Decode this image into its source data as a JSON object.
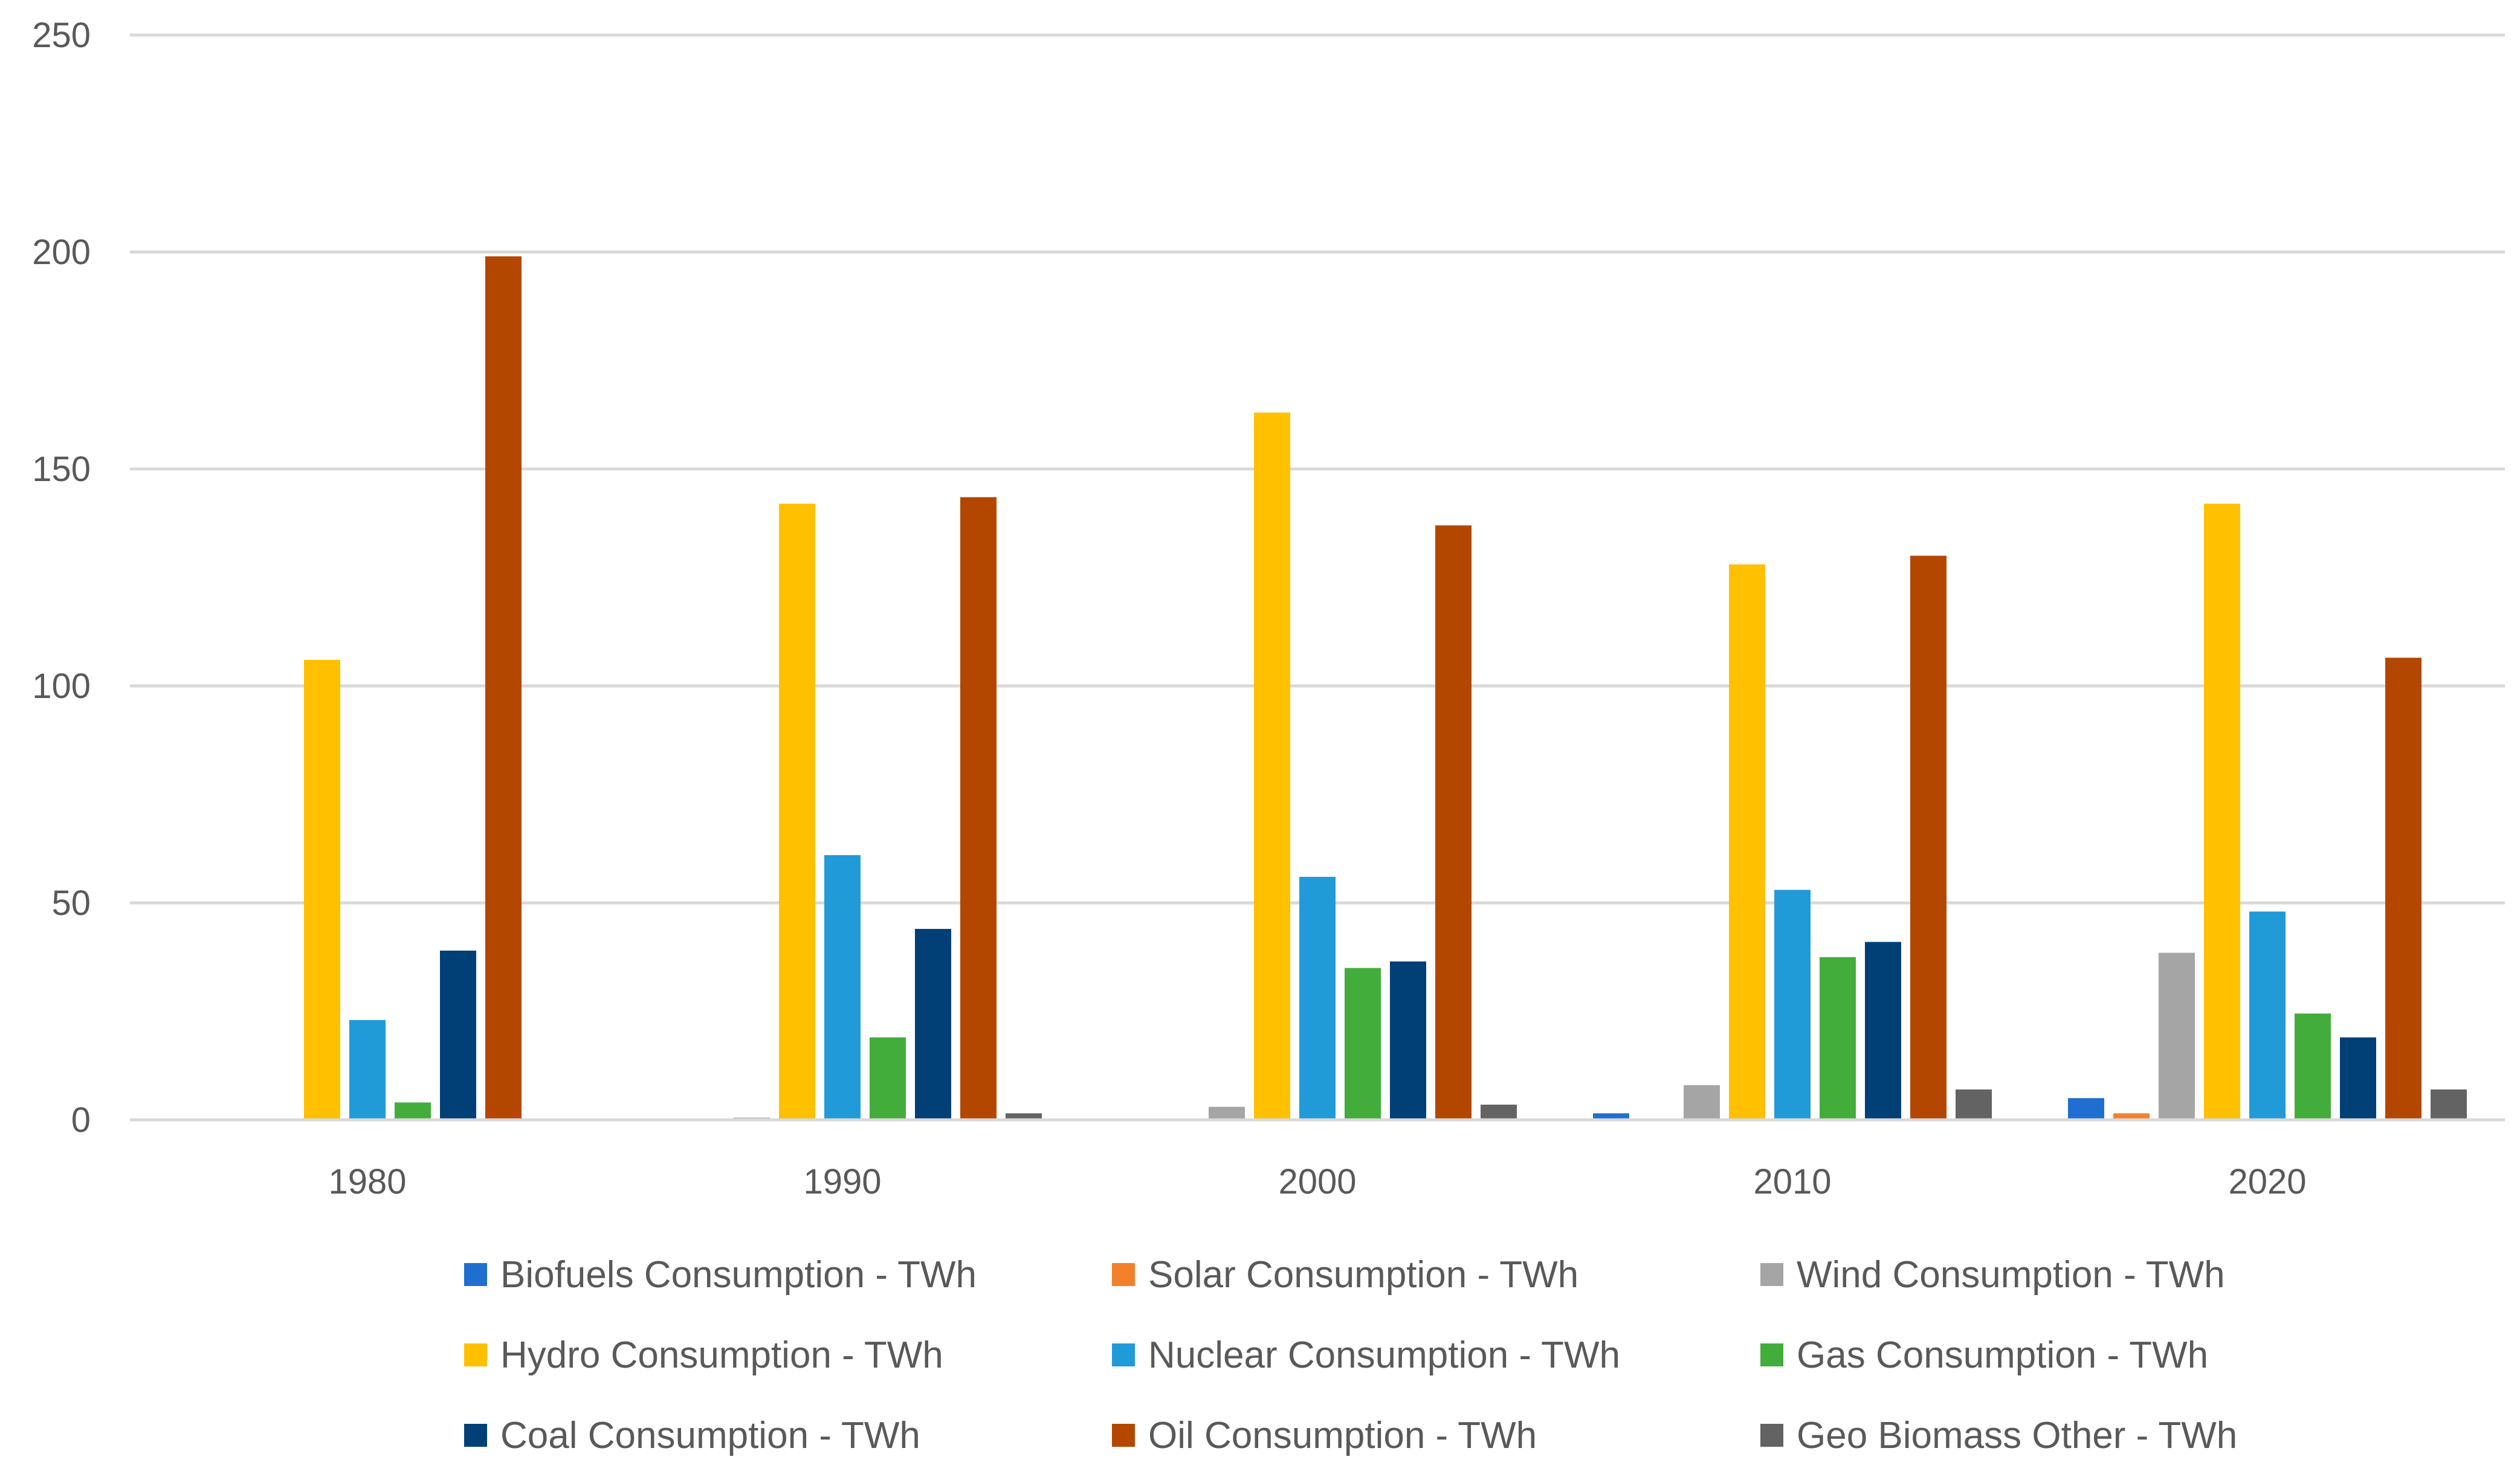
{
  "chart_data": {
    "type": "bar",
    "title": "",
    "xlabel": "",
    "ylabel": "",
    "ylim": [
      0,
      250
    ],
    "yticks": [
      0,
      50,
      100,
      150,
      200,
      250
    ],
    "grid": true,
    "legend_position": "bottom",
    "categories": [
      "1980",
      "1990",
      "2000",
      "2010",
      "2020"
    ],
    "series": [
      {
        "name": "Biofuels Consumption - TWh",
        "color": "#1f6fd1",
        "values": [
          0,
          0,
          0,
          1.5,
          5
        ]
      },
      {
        "name": "Solar Consumption - TWh",
        "color": "#f4802a",
        "values": [
          0,
          0,
          0,
          0,
          1.5
        ]
      },
      {
        "name": "Wind Consumption - TWh",
        "color": "#a5a5a5",
        "values": [
          0,
          0.5,
          3,
          8,
          38.5
        ]
      },
      {
        "name": "Hydro Consumption - TWh",
        "color": "#ffc000",
        "values": [
          106,
          142,
          163,
          128,
          142
        ]
      },
      {
        "name": "Nuclear Consumption - TWh",
        "color": "#219ad8",
        "values": [
          23,
          61,
          56,
          53,
          48
        ]
      },
      {
        "name": "Gas Consumption - TWh",
        "color": "#43ad3c",
        "values": [
          4,
          19,
          35,
          37.5,
          24.5
        ]
      },
      {
        "name": "Coal Consumption - TWh",
        "color": "#013f77",
        "values": [
          39,
          44,
          36.5,
          41,
          19
        ]
      },
      {
        "name": "Oil Consumption - TWh",
        "color": "#b34700",
        "values": [
          199,
          143.5,
          137,
          130,
          106.5
        ]
      },
      {
        "name": "Geo Biomass Other - TWh",
        "color": "#636363",
        "values": [
          0,
          1.5,
          3.5,
          7,
          7
        ]
      }
    ]
  }
}
